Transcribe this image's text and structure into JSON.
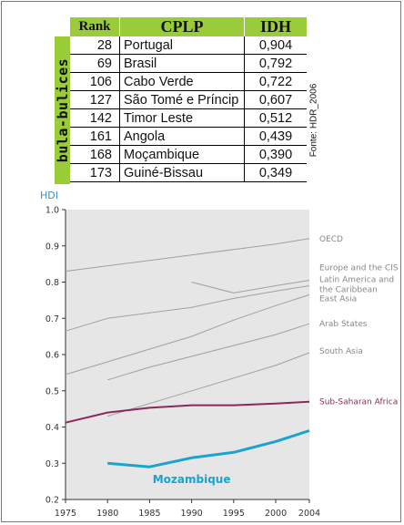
{
  "brand": {
    "text": "bula-bulices"
  },
  "table": {
    "headers": {
      "rank": "Rank",
      "country": "CPLP",
      "idh": "IDH"
    },
    "rows": [
      {
        "rank": "28",
        "country": "Portugal",
        "idh": "0,904"
      },
      {
        "rank": "69",
        "country": "Brasil",
        "idh": "0,792"
      },
      {
        "rank": "106",
        "country": "Cabo Verde",
        "idh": "0,722"
      },
      {
        "rank": "127",
        "country": "São Tomé e Príncip",
        "idh": "0,607"
      },
      {
        "rank": "142",
        "country": "Timor Leste",
        "idh": "0,512"
      },
      {
        "rank": "161",
        "country": "Angola",
        "idh": "0,439"
      },
      {
        "rank": "168",
        "country": "Moçambique",
        "idh": "0,390"
      },
      {
        "rank": "173",
        "country": "Guiné-Bissau",
        "idh": "0,349"
      }
    ],
    "source": "Fonte: HDR_2006"
  },
  "chart_data": {
    "type": "line",
    "ylabel": "HDI",
    "xlabel": "",
    "ylim": [
      0.2,
      1.0
    ],
    "xlim": [
      1975,
      2004
    ],
    "x_ticks": [
      1975,
      1980,
      1985,
      1990,
      1995,
      2000,
      2004
    ],
    "y_ticks": [
      "0.2",
      "0.3",
      "0.4",
      "0.5",
      "0.6",
      "0.7",
      "0.8",
      "0.9",
      "1.0"
    ],
    "grid": false,
    "background": "#e6e6e6",
    "series": [
      {
        "name": "OECD",
        "color": "#a0a0a0",
        "width": 1,
        "label_y": 0.92,
        "points": [
          [
            1975,
            0.83
          ],
          [
            1980,
            0.845
          ],
          [
            1985,
            0.86
          ],
          [
            1990,
            0.875
          ],
          [
            1995,
            0.89
          ],
          [
            2000,
            0.905
          ],
          [
            2004,
            0.92
          ]
        ]
      },
      {
        "name": "Europe and the CIS",
        "color": "#a0a0a0",
        "width": 1,
        "label_y": 0.84,
        "points": [
          [
            1990,
            0.8
          ],
          [
            1995,
            0.77
          ],
          [
            2000,
            0.79
          ],
          [
            2004,
            0.805
          ]
        ]
      },
      {
        "name": "Latin America and the Caribbean",
        "color": "#a0a0a0",
        "width": 1,
        "label_y": 0.795,
        "points": [
          [
            1975,
            0.665
          ],
          [
            1980,
            0.7
          ],
          [
            1985,
            0.715
          ],
          [
            1990,
            0.73
          ],
          [
            1995,
            0.755
          ],
          [
            2000,
            0.775
          ],
          [
            2004,
            0.79
          ]
        ]
      },
      {
        "name": "East Asia",
        "color": "#a0a0a0",
        "width": 1,
        "label_y": 0.755,
        "points": [
          [
            1975,
            0.545
          ],
          [
            1980,
            0.58
          ],
          [
            1985,
            0.615
          ],
          [
            1990,
            0.65
          ],
          [
            1995,
            0.695
          ],
          [
            2000,
            0.735
          ],
          [
            2004,
            0.765
          ]
        ]
      },
      {
        "name": "Arab States",
        "color": "#a0a0a0",
        "width": 1,
        "label_y": 0.685,
        "points": [
          [
            1980,
            0.53
          ],
          [
            1985,
            0.565
          ],
          [
            1990,
            0.595
          ],
          [
            1995,
            0.625
          ],
          [
            2000,
            0.655
          ],
          [
            2004,
            0.685
          ]
        ]
      },
      {
        "name": "South Asia",
        "color": "#a0a0a0",
        "width": 1,
        "label_y": 0.61,
        "points": [
          [
            1980,
            0.43
          ],
          [
            1985,
            0.465
          ],
          [
            1990,
            0.5
          ],
          [
            1995,
            0.535
          ],
          [
            2000,
            0.57
          ],
          [
            2004,
            0.605
          ]
        ]
      },
      {
        "name": "Sub-Saharan Africa",
        "color": "#8a2a5a",
        "width": 2,
        "label_y": 0.47,
        "points": [
          [
            1975,
            0.412
          ],
          [
            1980,
            0.44
          ],
          [
            1985,
            0.453
          ],
          [
            1990,
            0.46
          ],
          [
            1995,
            0.46
          ],
          [
            2000,
            0.465
          ],
          [
            2004,
            0.47
          ]
        ]
      },
      {
        "name": "Mozambique",
        "color": "#1aa3d0",
        "width": 3,
        "points": [
          [
            1980,
            0.3
          ],
          [
            1985,
            0.29
          ],
          [
            1990,
            0.315
          ],
          [
            1995,
            0.33
          ],
          [
            2000,
            0.36
          ],
          [
            2004,
            0.39
          ]
        ]
      }
    ],
    "in_plot_label": {
      "text": "Mozambique",
      "x": 1990,
      "y": 0.245
    }
  }
}
